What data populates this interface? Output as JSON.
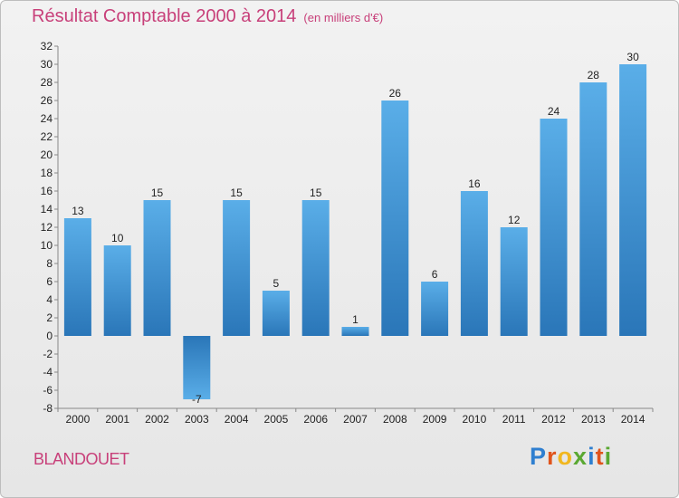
{
  "header": {
    "title": "Résultat Comptable 2000 à 2014",
    "subtitle": "(en milliers d'€)"
  },
  "footer": {
    "commune": "BLANDOUET",
    "logo_letters": [
      {
        "ch": "P",
        "color": "#2f7fd0"
      },
      {
        "ch": "r",
        "color": "#e0541c"
      },
      {
        "ch": "o",
        "color": "#f1b720"
      },
      {
        "ch": "x",
        "color": "#5aa832"
      },
      {
        "ch": "i",
        "color": "#2f7fd0"
      },
      {
        "ch": "t",
        "color": "#e0541c"
      },
      {
        "ch": "i",
        "color": "#5aa832"
      }
    ]
  },
  "chart_data": {
    "type": "bar",
    "title": "Résultat Comptable 2000 à 2014",
    "subtitle": "(en milliers d'€)",
    "categories": [
      "2000",
      "2001",
      "2002",
      "2003",
      "2004",
      "2005",
      "2006",
      "2007",
      "2008",
      "2009",
      "2010",
      "2011",
      "2012",
      "2013",
      "2014"
    ],
    "values": [
      13,
      10,
      15,
      -7,
      15,
      5,
      15,
      1,
      26,
      6,
      16,
      12,
      24,
      28,
      30
    ],
    "ylim": [
      -8,
      32
    ],
    "yticks": [
      -8,
      -6,
      -4,
      -2,
      0,
      2,
      4,
      6,
      8,
      10,
      12,
      14,
      16,
      18,
      20,
      22,
      24,
      26,
      28,
      30,
      32
    ],
    "grid": false,
    "bar_color": "#3f94d8"
  }
}
